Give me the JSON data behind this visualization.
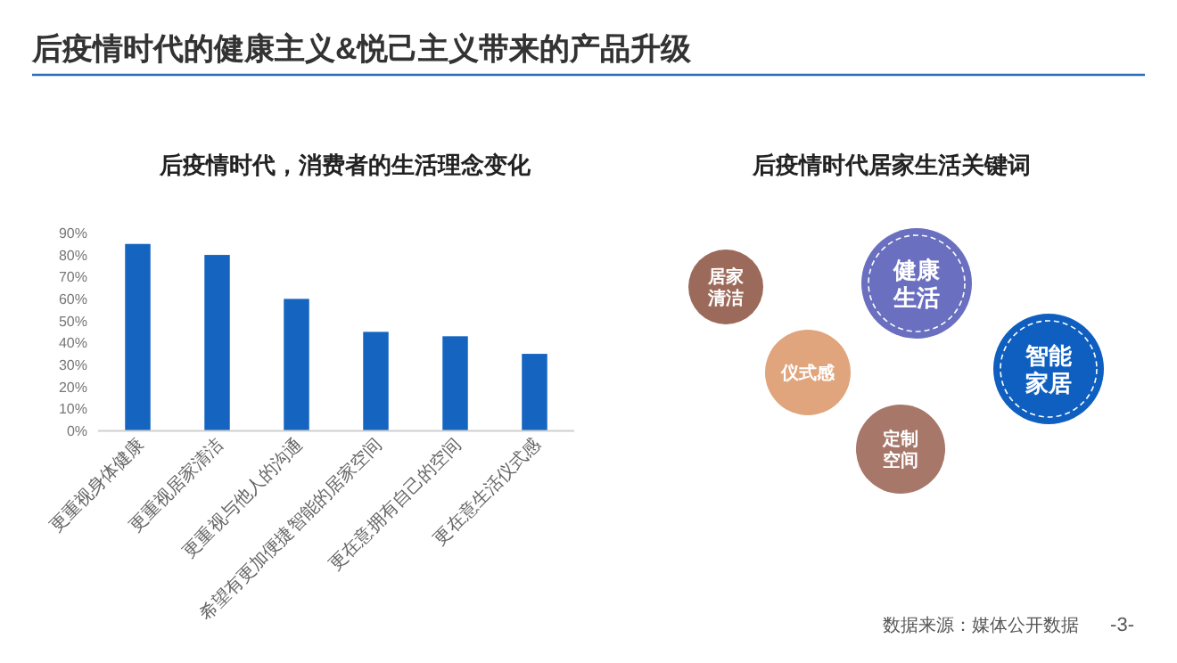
{
  "chart_data": [
    {
      "type": "bar",
      "title": "后疫情时代，消费者的生活理念变化",
      "categories": [
        "更重视身体健康",
        "更重视居家清洁",
        "更重视与他人的沟通",
        "希望有更加便捷智能的居家空间",
        "更在意拥有自己的空间",
        "更在意生活仪式感"
      ],
      "values": [
        85,
        80,
        60,
        45,
        43,
        35
      ],
      "color": "#1565c0",
      "ylim": [
        0,
        90
      ],
      "yticks": [
        {
          "value": 0,
          "label": "0%"
        },
        {
          "value": 10,
          "label": "10%"
        },
        {
          "value": 20,
          "label": "20%"
        },
        {
          "value": 30,
          "label": "30%"
        },
        {
          "value": 40,
          "label": "40%"
        },
        {
          "value": 50,
          "label": "50%"
        },
        {
          "value": 60,
          "label": "60%"
        },
        {
          "value": 70,
          "label": "70%"
        },
        {
          "value": 80,
          "label": "80%"
        },
        {
          "value": 90,
          "label": "90%"
        }
      ],
      "grid": false,
      "annotations": [
        "后疫情时代的健康主义&悦己主义带来的产品升级",
        "数据来源：媒体公开数据",
        "-3-"
      ]
    },
    {
      "type": "other",
      "title": "后疫情时代居家生活关键词",
      "annotations": [
        "居家清洁",
        "健康生活",
        "仪式感",
        "智能家居",
        "定制空间"
      ],
      "colors": [
        "#9b6a5a",
        "#6a6fc0",
        "#e0a57c",
        "#0f5fc0",
        "#a7776a"
      ]
    }
  ]
}
